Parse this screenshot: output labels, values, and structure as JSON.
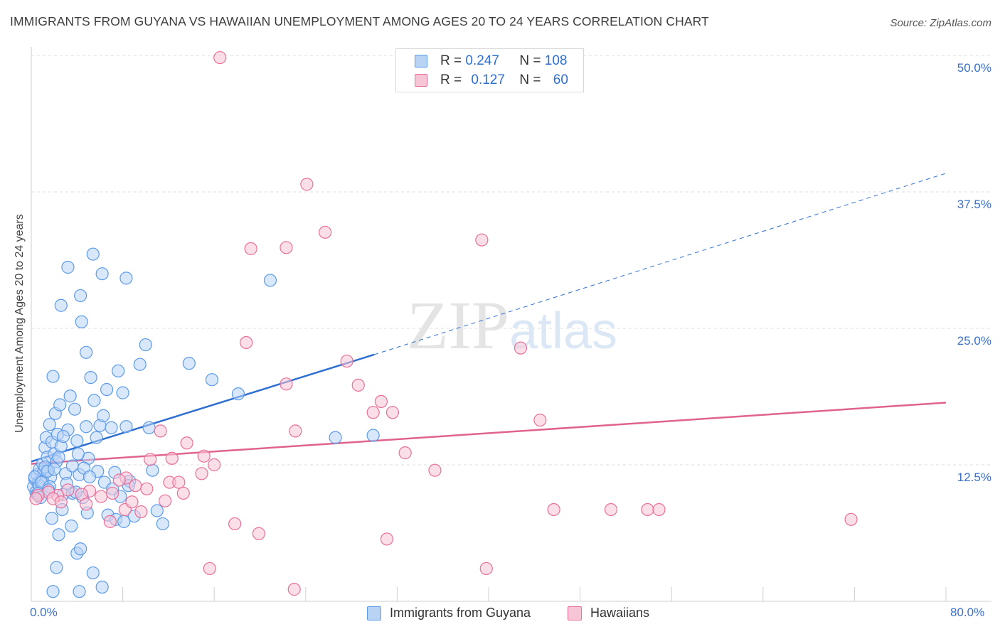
{
  "chart_data": {
    "type": "scatter",
    "title": "IMMIGRANTS FROM GUYANA VS HAWAIIAN UNEMPLOYMENT AMONG AGES 20 TO 24 YEARS CORRELATION CHART",
    "source": "Source: ZipAtlas.com",
    "xlabel": "",
    "ylabel": "Unemployment Among Ages 20 to 24 years",
    "xlim": [
      0,
      80
    ],
    "ylim": [
      0,
      50
    ],
    "x_tick_labels": [
      "0.0%",
      "80.0%"
    ],
    "y_ticks": [
      12.5,
      25.0,
      37.5,
      50.0
    ],
    "y_tick_labels": [
      "12.5%",
      "25.0%",
      "37.5%",
      "50.0%"
    ],
    "watermark": "ZIPatlas",
    "legend": {
      "r_label": "R =",
      "n_label": "N =",
      "entries": [
        {
          "name": "Immigrants from Guyana",
          "r": "0.247",
          "n": "108",
          "color": "#5b9be8",
          "fill": "#b9d3f5"
        },
        {
          "name": "Hawaiians",
          "r": "0.127",
          "n": "60",
          "color": "#e86f9a",
          "fill": "#f8c5d6"
        }
      ]
    },
    "series": [
      {
        "name": "Immigrants from Guyana",
        "color": "#5b9be8",
        "trend": {
          "x0": 0,
          "y0": 12.8,
          "x1": 30,
          "y1": 22.6,
          "dashed_to_x": 80,
          "dashed_to_y": 39.2,
          "color": "#2f6fd0"
        },
        "points": [
          [
            0.2,
            10.5
          ],
          [
            0.3,
            11.2
          ],
          [
            0.4,
            10.0
          ],
          [
            0.5,
            11.6
          ],
          [
            0.6,
            10.8
          ],
          [
            0.7,
            12.1
          ],
          [
            0.8,
            11.0
          ],
          [
            0.9,
            10.3
          ],
          [
            1.0,
            12.6
          ],
          [
            1.1,
            11.9
          ],
          [
            1.2,
            14.1
          ],
          [
            1.3,
            15.0
          ],
          [
            1.4,
            13.2
          ],
          [
            1.5,
            12.0
          ],
          [
            1.6,
            16.2
          ],
          [
            1.7,
            11.4
          ],
          [
            1.8,
            14.6
          ],
          [
            1.9,
            20.6
          ],
          [
            2.0,
            13.5
          ],
          [
            2.1,
            17.2
          ],
          [
            2.2,
            12.8
          ],
          [
            2.3,
            15.3
          ],
          [
            2.5,
            18.0
          ],
          [
            2.6,
            14.2
          ],
          [
            2.8,
            9.8
          ],
          [
            3.0,
            11.7
          ],
          [
            3.2,
            15.7
          ],
          [
            3.4,
            18.8
          ],
          [
            3.6,
            12.4
          ],
          [
            3.8,
            17.6
          ],
          [
            4.0,
            14.7
          ],
          [
            4.2,
            11.6
          ],
          [
            4.5,
            9.5
          ],
          [
            4.8,
            16.0
          ],
          [
            5.0,
            13.1
          ],
          [
            5.2,
            20.5
          ],
          [
            5.5,
            18.4
          ],
          [
            5.8,
            11.9
          ],
          [
            6.0,
            16.1
          ],
          [
            6.3,
            17.0
          ],
          [
            6.6,
            19.4
          ],
          [
            7.0,
            15.9
          ],
          [
            7.3,
            11.8
          ],
          [
            7.6,
            21.1
          ],
          [
            8.0,
            19.1
          ],
          [
            8.3,
            16.0
          ],
          [
            8.6,
            11.0
          ],
          [
            9.0,
            7.8
          ],
          [
            9.5,
            21.7
          ],
          [
            10.0,
            23.5
          ],
          [
            10.3,
            15.9
          ],
          [
            10.6,
            12.0
          ],
          [
            11.0,
            8.3
          ],
          [
            11.5,
            7.1
          ],
          [
            2.4,
            6.1
          ],
          [
            1.8,
            7.6
          ],
          [
            3.5,
            6.9
          ],
          [
            4.0,
            4.4
          ],
          [
            4.3,
            4.8
          ],
          [
            2.2,
            3.1
          ],
          [
            5.4,
            2.6
          ],
          [
            6.2,
            1.3
          ],
          [
            1.9,
            0.9
          ],
          [
            4.2,
            0.9
          ],
          [
            3.2,
            30.6
          ],
          [
            4.3,
            28.0
          ],
          [
            5.4,
            31.8
          ],
          [
            4.4,
            25.6
          ],
          [
            2.6,
            27.1
          ],
          [
            4.8,
            22.8
          ],
          [
            8.3,
            29.6
          ],
          [
            6.2,
            30.0
          ],
          [
            13.8,
            21.8
          ],
          [
            15.8,
            20.3
          ],
          [
            18.1,
            19.0
          ],
          [
            20.9,
            29.4
          ],
          [
            26.6,
            15.0
          ],
          [
            29.9,
            15.2
          ],
          [
            0.5,
            9.8
          ],
          [
            0.7,
            10.6
          ],
          [
            1.0,
            11.0
          ],
          [
            1.2,
            12.3
          ],
          [
            0.3,
            11.4
          ],
          [
            0.6,
            9.9
          ],
          [
            0.9,
            10.9
          ],
          [
            1.4,
            11.9
          ],
          [
            1.6,
            10.5
          ],
          [
            2.0,
            12.1
          ],
          [
            2.4,
            13.2
          ],
          [
            2.8,
            15.1
          ],
          [
            3.1,
            10.8
          ],
          [
            3.6,
            9.9
          ],
          [
            4.1,
            13.5
          ],
          [
            4.6,
            12.2
          ],
          [
            5.1,
            11.4
          ],
          [
            5.7,
            15.0
          ],
          [
            6.4,
            10.9
          ],
          [
            7.1,
            10.3
          ],
          [
            7.8,
            9.6
          ],
          [
            8.5,
            10.6
          ],
          [
            2.7,
            8.4
          ],
          [
            3.9,
            10.0
          ],
          [
            4.9,
            8.1
          ],
          [
            6.7,
            7.9
          ],
          [
            7.4,
            7.5
          ],
          [
            8.1,
            7.3
          ],
          [
            0.8,
            9.5
          ],
          [
            1.5,
            10.2
          ]
        ]
      },
      {
        "name": "Hawaiians",
        "color": "#e86f9a",
        "trend": {
          "x0": 0,
          "y0": 12.6,
          "x1": 80,
          "y1": 18.2,
          "color": "#e0638f"
        },
        "points": [
          [
            16.5,
            49.8
          ],
          [
            24.1,
            38.2
          ],
          [
            25.7,
            33.8
          ],
          [
            22.3,
            32.4
          ],
          [
            19.2,
            32.3
          ],
          [
            39.4,
            33.1
          ],
          [
            18.8,
            23.7
          ],
          [
            27.6,
            22.0
          ],
          [
            42.8,
            23.2
          ],
          [
            22.3,
            19.9
          ],
          [
            28.6,
            19.8
          ],
          [
            29.9,
            17.3
          ],
          [
            30.6,
            18.3
          ],
          [
            31.6,
            17.3
          ],
          [
            44.5,
            16.6
          ],
          [
            11.3,
            15.6
          ],
          [
            23.1,
            15.6
          ],
          [
            13.6,
            14.5
          ],
          [
            32.7,
            13.6
          ],
          [
            35.3,
            12.0
          ],
          [
            15.1,
            13.3
          ],
          [
            16.0,
            12.5
          ],
          [
            10.4,
            13.0
          ],
          [
            12.3,
            13.1
          ],
          [
            14.9,
            11.7
          ],
          [
            12.1,
            10.9
          ],
          [
            12.9,
            10.9
          ],
          [
            8.3,
            11.3
          ],
          [
            9.1,
            10.6
          ],
          [
            11.7,
            9.2
          ],
          [
            13.3,
            9.9
          ],
          [
            10.1,
            10.3
          ],
          [
            7.7,
            11.1
          ],
          [
            5.1,
            10.1
          ],
          [
            6.1,
            9.6
          ],
          [
            7.1,
            9.9
          ],
          [
            8.2,
            8.4
          ],
          [
            8.8,
            9.1
          ],
          [
            9.6,
            8.2
          ],
          [
            4.4,
            9.8
          ],
          [
            3.2,
            10.2
          ],
          [
            2.3,
            9.7
          ],
          [
            1.5,
            10.0
          ],
          [
            0.6,
            9.7
          ],
          [
            0.4,
            9.4
          ],
          [
            1.9,
            9.4
          ],
          [
            2.6,
            9.1
          ],
          [
            4.8,
            8.9
          ],
          [
            45.7,
            8.4
          ],
          [
            50.7,
            8.4
          ],
          [
            53.9,
            8.4
          ],
          [
            54.9,
            8.4
          ],
          [
            71.7,
            7.5
          ],
          [
            17.8,
            7.1
          ],
          [
            19.9,
            6.2
          ],
          [
            31.1,
            5.7
          ],
          [
            15.6,
            3.0
          ],
          [
            23.0,
            1.1
          ],
          [
            39.8,
            3.0
          ],
          [
            6.9,
            7.3
          ]
        ]
      }
    ]
  }
}
